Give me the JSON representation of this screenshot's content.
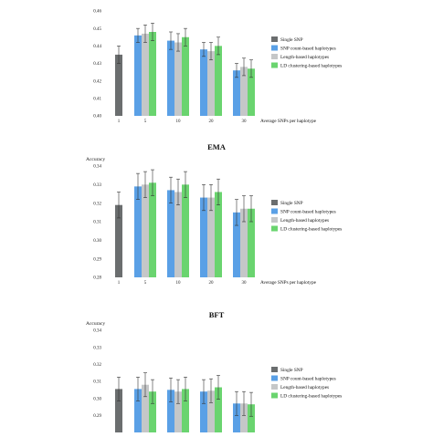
{
  "chart_data": [
    {
      "type": "bar",
      "title": "",
      "ylabel": "",
      "xlabel": "Average SNPs per haplotype",
      "categories": [
        "1",
        "5",
        "10",
        "20",
        "30"
      ],
      "ylim": [
        0.4,
        0.46
      ],
      "yticks": [
        "0.40",
        "0.41",
        "0.42",
        "0.43",
        "0.44",
        "0.45",
        "0.46"
      ],
      "legend_position": "right",
      "series": [
        {
          "name": "Single SNP",
          "color": "#6b6e6f",
          "values": [
            0.435,
            null,
            null,
            null,
            null
          ],
          "errors": [
            0.005,
            null,
            null,
            null,
            null
          ]
        },
        {
          "name": "SNP count-based haplotypes",
          "color": "#5aa0e6",
          "values": [
            null,
            0.446,
            0.443,
            0.438,
            0.426
          ],
          "errors": [
            null,
            0.004,
            0.005,
            0.004,
            0.004
          ]
        },
        {
          "name": "Length-based haplotypes",
          "color": "#c5c7c8",
          "values": [
            null,
            0.447,
            0.442,
            0.437,
            0.428
          ],
          "errors": [
            null,
            0.005,
            0.005,
            0.005,
            0.005
          ]
        },
        {
          "name": "LD clustering-based haplotypes",
          "color": "#6ad46f",
          "values": [
            null,
            0.448,
            0.445,
            0.44,
            0.427
          ],
          "errors": [
            null,
            0.005,
            0.005,
            0.005,
            0.005
          ]
        }
      ]
    },
    {
      "type": "bar",
      "title": "EMA",
      "ylabel": "Accuracy",
      "xlabel": "Average SNPs per haplotype",
      "categories": [
        "1",
        "5",
        "10",
        "20",
        "30"
      ],
      "ylim": [
        0.28,
        0.34
      ],
      "yticks": [
        "0.28",
        "0.29",
        "0.30",
        "0.31",
        "0.32",
        "0.33",
        "0.34"
      ],
      "legend_position": "right",
      "series": [
        {
          "name": "Single SNP",
          "color": "#6b6e6f",
          "values": [
            0.319,
            null,
            null,
            null,
            null
          ],
          "errors": [
            0.007,
            null,
            null,
            null,
            null
          ]
        },
        {
          "name": "SNP count-based haplotypes",
          "color": "#5aa0e6",
          "values": [
            null,
            0.329,
            0.327,
            0.323,
            0.315
          ],
          "errors": [
            null,
            0.007,
            0.007,
            0.007,
            0.007
          ]
        },
        {
          "name": "Length-based haplotypes",
          "color": "#c5c7c8",
          "values": [
            null,
            0.33,
            0.326,
            0.323,
            0.317
          ],
          "errors": [
            null,
            0.007,
            0.007,
            0.007,
            0.007
          ]
        },
        {
          "name": "LD clustering-based haplotypes",
          "color": "#6ad46f",
          "values": [
            null,
            0.331,
            0.33,
            0.326,
            0.317
          ],
          "errors": [
            null,
            0.007,
            0.007,
            0.007,
            0.007
          ]
        }
      ]
    },
    {
      "type": "bar",
      "title": "BFT",
      "ylabel": "Accuracy",
      "xlabel": "",
      "categories": [
        "1",
        "5",
        "10",
        "20",
        "30"
      ],
      "ylim": [
        0.28,
        0.34
      ],
      "yticks": [
        "0.28",
        "0.29",
        "0.30",
        "0.31",
        "0.32",
        "0.33",
        "0.34"
      ],
      "legend_position": "right",
      "series": [
        {
          "name": "Single SNP",
          "color": "#6b6e6f",
          "values": [
            0.3055,
            null,
            null,
            null,
            null
          ],
          "errors": [
            0.007,
            null,
            null,
            null,
            null
          ]
        },
        {
          "name": "SNP count-based haplotypes",
          "color": "#5aa0e6",
          "values": [
            null,
            0.3055,
            0.305,
            0.304,
            0.297
          ],
          "errors": [
            null,
            0.007,
            0.007,
            0.007,
            0.007
          ]
        },
        {
          "name": "Length-based haplotypes",
          "color": "#c5c7c8",
          "values": [
            null,
            0.308,
            0.304,
            0.3045,
            0.297
          ],
          "errors": [
            null,
            0.007,
            0.007,
            0.007,
            0.007
          ]
        },
        {
          "name": "LD clustering-based haplotypes",
          "color": "#6ad46f",
          "values": [
            null,
            0.304,
            0.3055,
            0.3065,
            0.2965
          ],
          "errors": [
            null,
            0.007,
            0.007,
            0.007,
            0.007
          ]
        }
      ]
    }
  ]
}
